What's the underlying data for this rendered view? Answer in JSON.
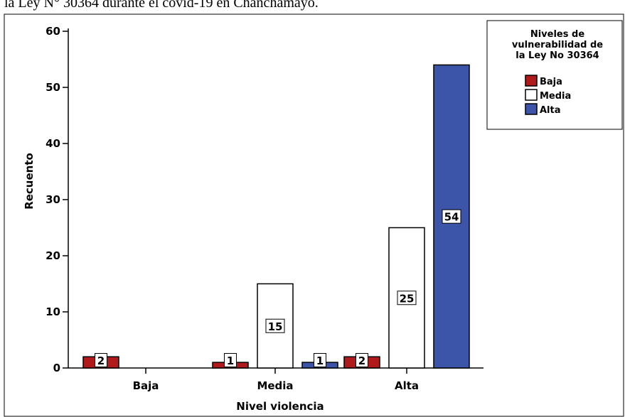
{
  "caption": "la Ley N° 30364 durante el covid-19 en Chanchamayo.",
  "chart_data": {
    "type": "bar",
    "xlabel": "Nivel violencia",
    "ylabel": "Recuento",
    "ylim": [
      0,
      60
    ],
    "yticks": [
      0,
      10,
      20,
      30,
      40,
      50,
      60
    ],
    "grid": false,
    "categories": [
      "Baja",
      "Media",
      "Alta"
    ],
    "legend": {
      "title_lines": [
        "Niveles de",
        "vulnerabilidad de",
        "la Ley No 30364"
      ],
      "placement": "right"
    },
    "series": [
      {
        "name": "Baja",
        "color": "#b11a1a",
        "values": [
          2,
          1,
          2
        ]
      },
      {
        "name": "Media",
        "color": "#ffffff",
        "values": [
          null,
          15,
          25
        ]
      },
      {
        "name": "Alta",
        "color": "#3d55a8",
        "values": [
          null,
          1,
          54
        ]
      }
    ]
  }
}
